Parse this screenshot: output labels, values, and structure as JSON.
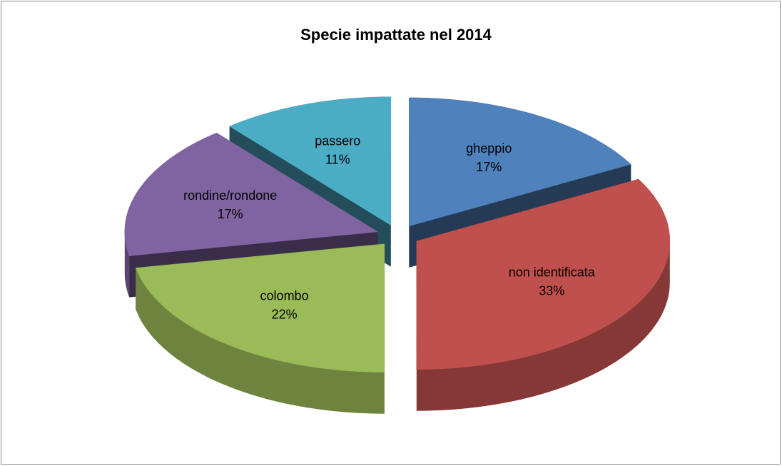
{
  "chart_data": {
    "type": "pie3d",
    "title": "Specie impattate nel 2014",
    "categories": [
      "gheppio",
      "non identificata",
      "colombo",
      "rondine/rondone",
      "passero"
    ],
    "values": [
      17,
      33,
      22,
      17,
      11
    ],
    "value_labels": [
      "17%",
      "33%",
      "22%",
      "17%",
      "11%"
    ],
    "colors": [
      "#4f81bd",
      "#c0504d",
      "#9bbb59",
      "#8064a2",
      "#4bacc6"
    ]
  }
}
